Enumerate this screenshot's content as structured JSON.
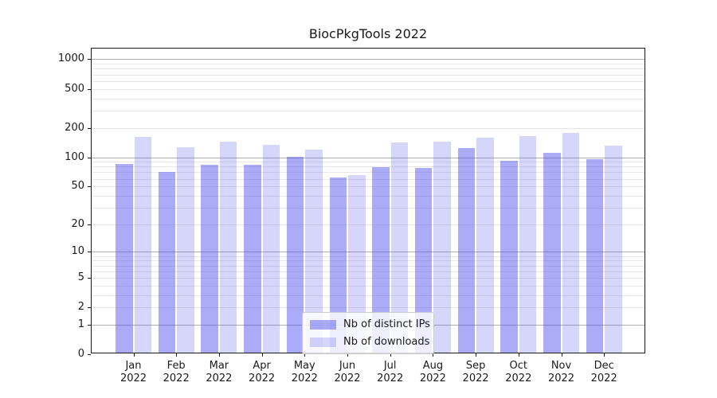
{
  "title": "BiocPkgTools 2022",
  "chart_data": {
    "type": "bar",
    "title": "BiocPkgTools 2022",
    "categories": [
      "Jan 2022",
      "Feb 2022",
      "Mar 2022",
      "Apr 2022",
      "May 2022",
      "Jun 2022",
      "Jul 2022",
      "Aug 2022",
      "Sep 2022",
      "Oct 2022",
      "Nov 2022",
      "Dec 2022"
    ],
    "x_tick_months": [
      "Jan",
      "Feb",
      "Mar",
      "Apr",
      "May",
      "Jun",
      "Jul",
      "Aug",
      "Sep",
      "Oct",
      "Nov",
      "Dec"
    ],
    "x_tick_year": "2022",
    "series": [
      {
        "name": "Nb of distinct IPs",
        "color": "rgba(68,68,238,0.45)",
        "values": [
          82,
          68,
          81,
          81,
          97,
          60,
          76,
          75,
          120,
          89,
          107,
          92
        ]
      },
      {
        "name": "Nb of downloads",
        "color": "rgba(68,68,238,0.22)",
        "values": [
          157,
          121,
          139,
          128,
          115,
          63,
          136,
          139,
          153,
          159,
          172,
          126
        ]
      }
    ],
    "yscale": "log1p",
    "yticks": [
      0,
      1,
      2,
      5,
      10,
      20,
      50,
      100,
      200,
      500,
      1000
    ],
    "ylim": [
      0,
      1286
    ],
    "xlabel": "",
    "ylabel": "",
    "grid": true,
    "legend_position": "lower center",
    "colors": {
      "bar_distinct_ips": "rgba(68,68,238,0.45)",
      "bar_downloads": "rgba(68,68,238,0.22)",
      "major_grid": "#b0b0b0",
      "minor_grid": "#e8e8e8",
      "spine": "#1a1a1a",
      "text": "#1a1a1a"
    }
  }
}
